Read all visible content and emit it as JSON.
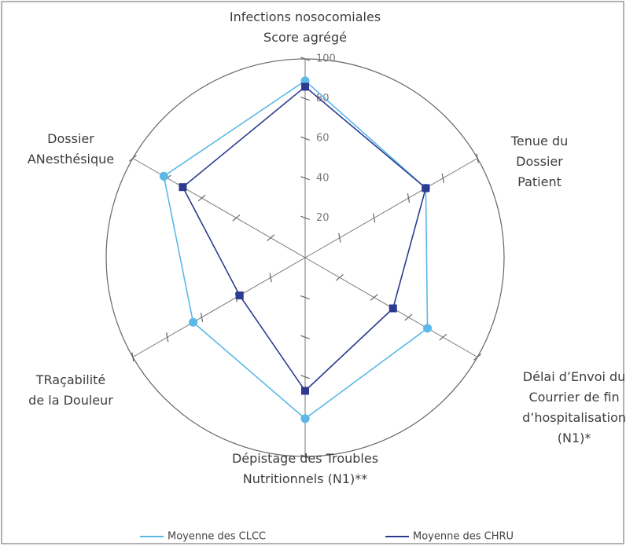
{
  "chart_data": {
    "type": "radar",
    "categories": [
      "Infections nosocomiales\nScore agrégé",
      "Tenue du Dossier\nPatient",
      "Délai d’Envoi du\nCourrier de fin\nd’hospitalisation (N1)*",
      "Dépistage des Troubles\nNutritionnels (N1)**",
      "TRaçabilité\nde la Douleur",
      "Dossier\nANesthésique"
    ],
    "series": [
      {
        "name": "Moyenne des CLCC",
        "color": "#5bb8e8",
        "marker": "circle",
        "values": [
          89,
          70,
          71,
          81,
          65,
          82
        ]
      },
      {
        "name": "Moyenne des CHRU",
        "color": "#2c3b8f",
        "marker": "square",
        "values": [
          86,
          70,
          51,
          67,
          38,
          71
        ]
      }
    ],
    "rlim": [
      0,
      100
    ],
    "rticks": [
      20,
      40,
      60,
      80,
      100
    ],
    "legend": "bottom"
  }
}
